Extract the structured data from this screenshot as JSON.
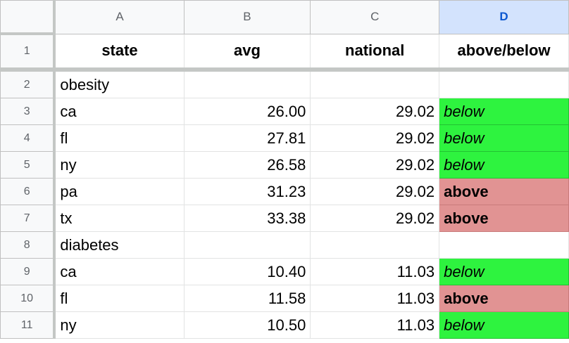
{
  "columns": [
    "A",
    "B",
    "C",
    "D"
  ],
  "header_row": {
    "num": "1",
    "state": "state",
    "avg": "avg",
    "national": "national",
    "status": "above/below"
  },
  "rows": [
    {
      "num": "2",
      "state": "obesity",
      "avg": "",
      "national": "",
      "status": "",
      "type": ""
    },
    {
      "num": "3",
      "state": "ca",
      "avg": "26.00",
      "national": "29.02",
      "status": "below",
      "type": "below"
    },
    {
      "num": "4",
      "state": "fl",
      "avg": "27.81",
      "national": "29.02",
      "status": "below",
      "type": "below"
    },
    {
      "num": "5",
      "state": "ny",
      "avg": "26.58",
      "national": "29.02",
      "status": "below",
      "type": "below"
    },
    {
      "num": "6",
      "state": "pa",
      "avg": "31.23",
      "national": "29.02",
      "status": "above",
      "type": "above"
    },
    {
      "num": "7",
      "state": "tx",
      "avg": "33.38",
      "national": "29.02",
      "status": "above",
      "type": "above"
    },
    {
      "num": "8",
      "state": "diabetes",
      "avg": "",
      "national": "",
      "status": "",
      "type": ""
    },
    {
      "num": "9",
      "state": "ca",
      "avg": "10.40",
      "national": "11.03",
      "status": "below",
      "type": "below"
    },
    {
      "num": "10",
      "state": "fl",
      "avg": "11.58",
      "national": "11.03",
      "status": "above",
      "type": "above"
    },
    {
      "num": "11",
      "state": "ny",
      "avg": "10.50",
      "national": "11.03",
      "status": "below",
      "type": "below"
    }
  ],
  "colors": {
    "below": "#2ef33f",
    "above": "#e19393",
    "selected_col": "#d3e3fd"
  }
}
